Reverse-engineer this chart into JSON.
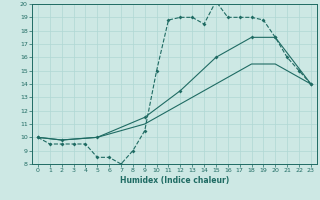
{
  "xlabel": "Humidex (Indice chaleur)",
  "xlim": [
    -0.5,
    23.5
  ],
  "ylim": [
    8,
    20
  ],
  "yticks": [
    8,
    9,
    10,
    11,
    12,
    13,
    14,
    15,
    16,
    17,
    18,
    19,
    20
  ],
  "xticks": [
    0,
    1,
    2,
    3,
    4,
    5,
    6,
    7,
    8,
    9,
    10,
    11,
    12,
    13,
    14,
    15,
    16,
    17,
    18,
    19,
    20,
    21,
    22,
    23
  ],
  "bg_color": "#cde8e4",
  "grid_color": "#b0d8d4",
  "line_color": "#1f6b63",
  "line1_x": [
    0,
    1,
    2,
    3,
    4,
    5,
    6,
    7,
    8,
    9,
    10,
    11,
    12,
    13,
    14,
    15,
    16,
    17,
    18,
    19,
    20,
    21,
    22,
    23
  ],
  "line1_y": [
    10,
    9.5,
    9.5,
    9.5,
    9.5,
    8.5,
    8.5,
    8,
    9,
    10.5,
    15,
    18.8,
    19,
    19,
    18.5,
    20.2,
    19,
    19,
    19,
    18.8,
    17.5,
    16,
    15,
    14
  ],
  "line2_x": [
    0,
    2,
    5,
    9,
    12,
    15,
    18,
    20,
    23
  ],
  "line2_y": [
    10,
    9.8,
    10,
    11.5,
    13.5,
    16,
    17.5,
    17.5,
    14
  ],
  "line3_x": [
    0,
    2,
    5,
    9,
    12,
    15,
    18,
    20,
    23
  ],
  "line3_y": [
    10,
    9.8,
    10,
    11,
    12.5,
    14,
    15.5,
    15.5,
    14
  ]
}
